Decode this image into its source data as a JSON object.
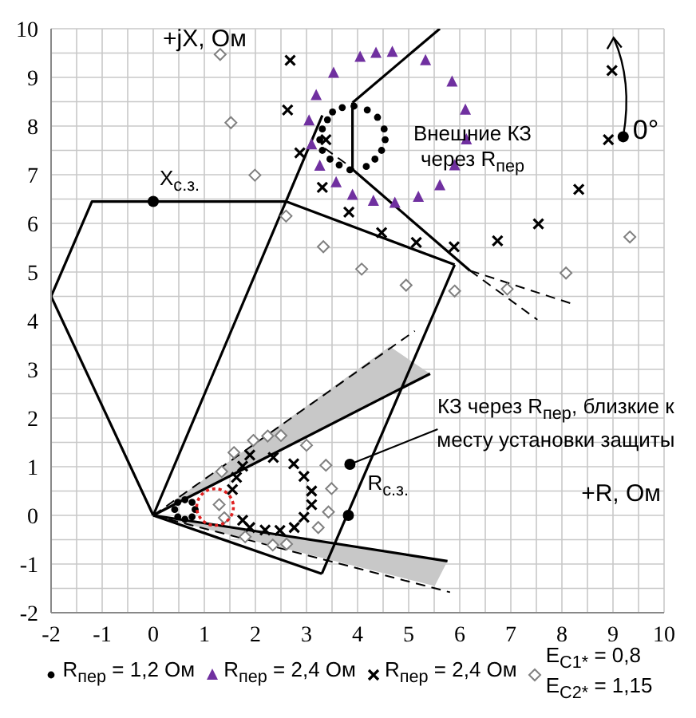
{
  "chart_data": {
    "type": "scatter",
    "xlabel": "+R, Ом",
    "ylabel": "+jX, Ом",
    "xlim": [
      -2,
      10
    ],
    "ylim": [
      -2,
      10
    ],
    "xticks": [
      -2,
      {
        "value": -1.5,
        "label": null
      },
      -1,
      {
        "value": -0.5,
        "label": null
      },
      0,
      {
        "value": 0.5,
        "label": null
      },
      1,
      {
        "value": 1.5,
        "label": null
      },
      2,
      {
        "value": 2.5,
        "label": null
      },
      3,
      {
        "value": 3.5,
        "label": null
      },
      4,
      {
        "value": 4.5,
        "label": null
      },
      5,
      {
        "value": 5.5,
        "label": null
      },
      6,
      {
        "value": 6.5,
        "label": null
      },
      7,
      {
        "value": 7.5,
        "label": null
      },
      8,
      {
        "value": 8.5,
        "label": null
      },
      9,
      {
        "value": 9.5,
        "label": null
      },
      10
    ],
    "yticks": [
      -2,
      {
        "value": -1.5,
        "label": null
      },
      -1,
      {
        "value": -0.5,
        "label": null
      },
      0,
      {
        "value": 0.5,
        "label": null
      },
      1,
      {
        "value": 1.5,
        "label": null
      },
      2,
      {
        "value": 2.5,
        "label": null
      },
      3,
      {
        "value": 3.5,
        "label": null
      },
      4,
      {
        "value": 4.5,
        "label": null
      },
      5,
      {
        "value": 5.5,
        "label": null
      },
      6,
      {
        "value": 6.5,
        "label": null
      },
      7,
      {
        "value": 7.5,
        "label": null
      },
      8,
      {
        "value": 8.5,
        "label": null
      },
      9,
      {
        "value": 9.5,
        "label": null
      },
      10
    ],
    "grid": true,
    "legend": "bottom",
    "series": [
      {
        "type": "line",
        "color": "#000000",
        "line_style": "solid",
        "x": [
          -2,
          0
        ],
        "values": [
          4.5,
          0
        ]
      },
      {
        "type": "line",
        "color": "#000000",
        "line_style": "solid",
        "x": [
          -2,
          -1.2,
          2.6,
          5.9
        ],
        "values": [
          4.5,
          6.45,
          6.45,
          5.15
        ]
      },
      {
        "type": "line",
        "color": "#000000",
        "line_style": "solid",
        "x": [
          3.3,
          5.9
        ],
        "values": [
          -1.2,
          5.15
        ]
      },
      {
        "type": "line",
        "color": "#000000",
        "line_style": "solid",
        "x": [
          0,
          3.3
        ],
        "values": [
          0,
          -1.2
        ]
      },
      {
        "type": "line",
        "color": "#000000",
        "line_style": "solid",
        "x": [
          0,
          3.31
        ],
        "values": [
          0,
          8.22
        ]
      },
      {
        "type": "line",
        "color": "#000000",
        "line_style": "solid",
        "x": [
          3.9,
          5.61
        ],
        "values": [
          8.48,
          10
        ]
      },
      {
        "type": "line",
        "color": "#000000",
        "line_style": "solid",
        "x": [
          3.9,
          3.9
        ],
        "values": [
          8.48,
          7.11
        ]
      },
      {
        "type": "line",
        "color": "#000000",
        "line_style": "solid",
        "x": [
          3.9,
          6.2
        ],
        "values": [
          7.11,
          5.03
        ]
      },
      {
        "type": "line",
        "color": "#000000",
        "line_style": "dashed",
        "x": [
          3.36,
          3.93
        ],
        "values": [
          7.54,
          7.11
        ]
      },
      {
        "type": "line",
        "color": "#000000",
        "line_style": "dashed",
        "x": [
          6.2,
          8.25
        ],
        "values": [
          5.03,
          4.33
        ]
      },
      {
        "type": "line",
        "color": "#000000",
        "line_style": "dashed",
        "x": [
          6.2,
          7.52
        ],
        "values": [
          5.03,
          4.02
        ]
      },
      {
        "type": "line",
        "color": "#000000",
        "line_style": "solid",
        "x": [
          0,
          0.5,
          4.63,
          5.42
        ],
        "values": [
          0,
          0.27,
          2.49,
          2.91
        ],
        "lower": [
          0,
          0.27,
          2.49,
          2.91
        ],
        "upper": [
          0,
          0.37,
          3.47,
          2.91
        ]
      },
      {
        "type": "line",
        "color": "#000000",
        "line_style": "dashed",
        "x": [
          0,
          5.12
        ],
        "values": [
          0,
          3.79
        ]
      },
      {
        "type": "line",
        "color": "#000000",
        "line_style": "solid",
        "x": [
          0,
          1.0,
          5.51,
          5.76
        ],
        "values": [
          0,
          -0.16,
          -0.9,
          -0.94
        ],
        "lower": [
          0,
          -0.27,
          -1.45,
          -0.94
        ],
        "upper": [
          0,
          -0.16,
          -0.9,
          -0.94
        ]
      },
      {
        "type": "line",
        "color": "#000000",
        "line_style": "dashed",
        "x": [
          0,
          5.81
        ],
        "values": [
          0,
          -1.58
        ]
      },
      {
        "name": "R$_{пер}$ = 1,2 Ом",
        "marker": "circle",
        "color": "#000000",
        "x": [
          3.51,
          3.7,
          3.93,
          4.19,
          4.39,
          4.52,
          4.54,
          4.47,
          4.34,
          4.17,
          3.85,
          3.64,
          3.46,
          3.31,
          3.26,
          3.31,
          3.41,
          0.42,
          0.48,
          0.62,
          0.76,
          0.82,
          0.76,
          0.62,
          0.48
        ],
        "values": [
          8.29,
          8.38,
          8.41,
          8.33,
          8.18,
          7.94,
          7.72,
          7.5,
          7.32,
          7.17,
          7.1,
          7.2,
          7.32,
          7.5,
          7.72,
          7.94,
          8.13,
          0.12,
          0.27,
          0.32,
          0.27,
          0.12,
          -0.03,
          -0.08,
          -0.03
        ]
      },
      {
        "name": "R$_{пер}$ = 2,4 Ом",
        "marker": "triangle",
        "color": "#7030a0",
        "x": [
          4.05,
          4.36,
          4.68,
          5.33,
          5.85,
          6.11,
          6.13,
          5.9,
          5.61,
          5.19,
          4.73,
          4.31,
          3.9,
          3.58,
          3.26,
          3.1,
          3.05,
          3.19,
          3.53
        ],
        "values": [
          9.42,
          9.5,
          9.52,
          9.35,
          8.91,
          8.33,
          7.72,
          7.19,
          6.78,
          6.54,
          6.42,
          6.46,
          6.58,
          6.84,
          7.18,
          7.62,
          8.11,
          8.63,
          9.09
        ]
      },
      {
        "name": "R$_{пер}$ = 2,4 Ом",
        "marker": "cross",
        "color": "#000000",
        "x": [
          2.68,
          2.63,
          2.87,
          3.38,
          3.31,
          3.83,
          4.47,
          5.15,
          5.89,
          6.74,
          7.54,
          8.33,
          8.91,
          8.98,
          1.89,
          2.35,
          2.75,
          2.95,
          3.1,
          3.1,
          2.95,
          2.76,
          2.48,
          2.19,
          1.89,
          1.75,
          1.55,
          1.63,
          1.75
        ],
        "values": [
          9.35,
          8.33,
          7.45,
          7.72,
          6.74,
          6.23,
          5.81,
          5.61,
          5.52,
          5.64,
          5.99,
          6.7,
          7.72,
          9.14,
          1.24,
          1.19,
          1.06,
          0.8,
          0.5,
          0.22,
          -0.04,
          -0.25,
          -0.31,
          -0.3,
          -0.25,
          -0.1,
          0.53,
          0.78,
          1.01
        ]
      },
      {
        "name": "E$_{C1*}$ = 0,8\nE$_{C2*}$ = 1,15",
        "marker": "diamond",
        "color": "#808080",
        "x": [
          1.31,
          1.52,
          1.99,
          2.6,
          3.33,
          4.08,
          4.95,
          5.9,
          6.93,
          8.08,
          9.33,
          1.58,
          1.96,
          2.24,
          2.5,
          3.0,
          3.38,
          3.49,
          3.43,
          3.23,
          2.61,
          2.34,
          1.8,
          1.39,
          1.29,
          1.34
        ],
        "values": [
          9.47,
          8.07,
          6.99,
          6.15,
          5.52,
          5.06,
          4.73,
          4.61,
          4.65,
          4.98,
          5.72,
          1.29,
          1.54,
          1.63,
          1.64,
          1.44,
          1.03,
          0.55,
          0.07,
          -0.25,
          -0.59,
          -0.61,
          -0.44,
          -0.05,
          0.22,
          0.9
        ]
      }
    ],
    "annotations": [
      {
        "text": "X$_{с.з.}$",
        "x": 0,
        "y": 6.45
      },
      {
        "text": "R$_{с.з.}$",
        "x": 3.82,
        "y": 0
      },
      {
        "text": "0°",
        "x": 9.2,
        "y": 7.78
      },
      {
        "text": "КЗ через R$_{пер}$, близкие к месту установки защиты",
        "x": 3.85,
        "y": 1.05
      },
      "Внешние КЗ через R$_{пер}$"
    ]
  }
}
